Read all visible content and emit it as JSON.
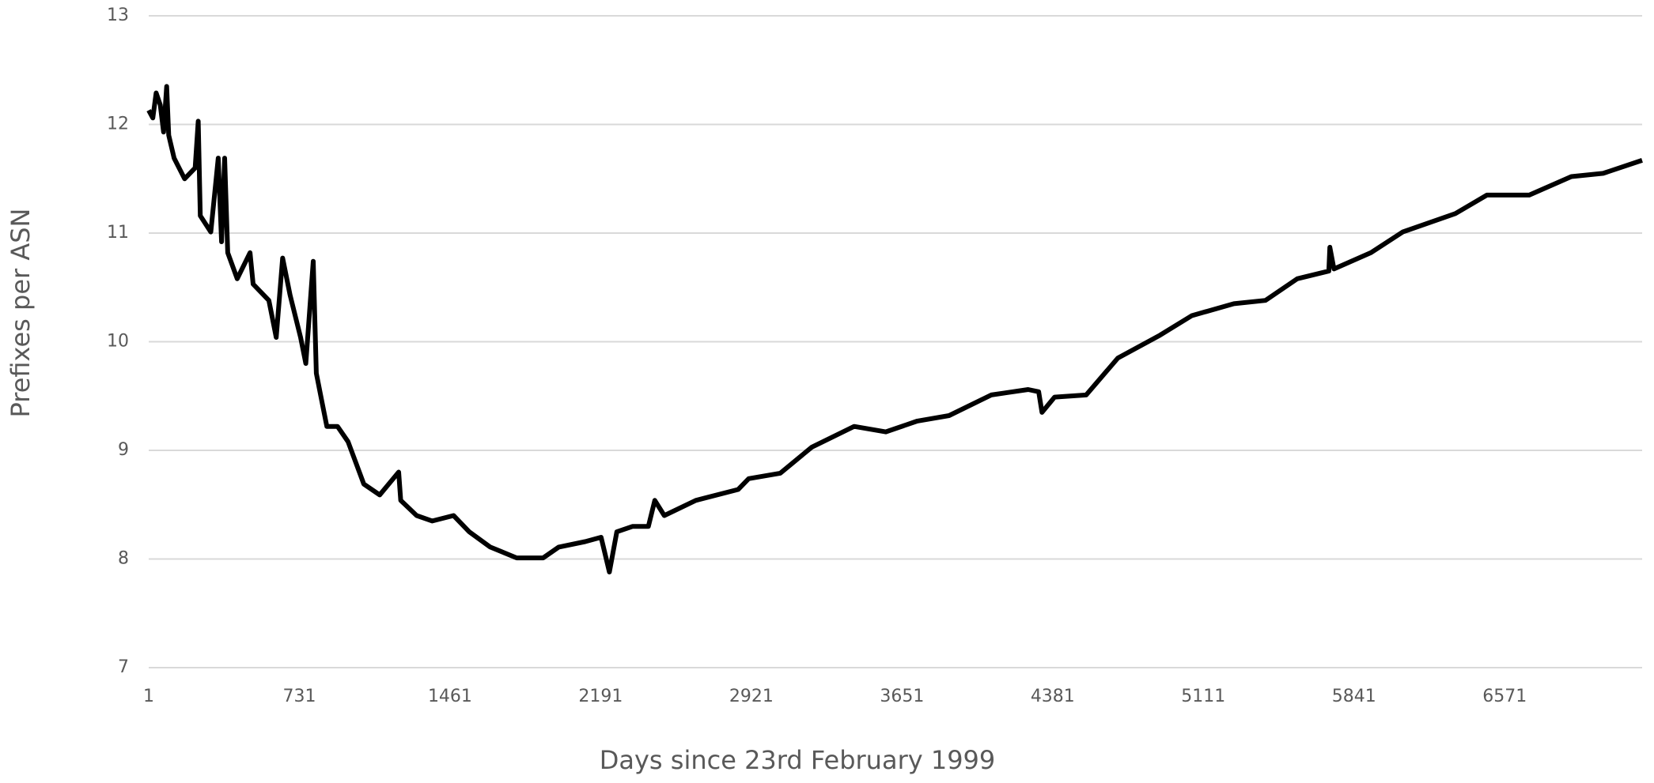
{
  "chart_data": {
    "type": "line",
    "x_label": "Days since 23rd February 1999",
    "y_label": "Prefixes per ASN",
    "xlim": [
      1,
      7237
    ],
    "xticks": [
      1,
      731,
      1461,
      2191,
      2921,
      3651,
      4381,
      5111,
      5841,
      6571
    ],
    "ylim": [
      7,
      13
    ],
    "yticks": [
      7,
      8,
      9,
      10,
      11,
      12,
      13
    ],
    "grid": true,
    "x": [
      1,
      21,
      37,
      57,
      73,
      88,
      98,
      124,
      175,
      226,
      241,
      251,
      302,
      338,
      354,
      369,
      384,
      430,
      492,
      507,
      583,
      619,
      650,
      686,
      737,
      762,
      798,
      813,
      844,
      864,
      916,
      967,
      1043,
      1120,
      1212,
      1222,
      1299,
      1375,
      1478,
      1554,
      1656,
      1784,
      1912,
      1988,
      2116,
      2193,
      2233,
      2269,
      2346,
      2422,
      2453,
      2499,
      2652,
      2857,
      2908,
      3061,
      3214,
      3419,
      3572,
      3725,
      3879,
      4083,
      4262,
      4313,
      4329,
      4390,
      4543,
      4697,
      4901,
      5055,
      5259,
      5412,
      5566,
      5719,
      5724,
      5744,
      5923,
      6077,
      6332,
      6485,
      6690,
      6894,
      7048,
      7237
    ],
    "series": [
      {
        "color": "#000000",
        "values": [
          12.13,
          12.06,
          12.29,
          12.18,
          11.93,
          12.35,
          11.9,
          11.69,
          11.5,
          11.6,
          12.03,
          11.16,
          11.01,
          11.69,
          10.92,
          11.69,
          10.82,
          10.58,
          10.82,
          10.53,
          10.38,
          10.04,
          10.77,
          10.43,
          10.04,
          9.8,
          10.74,
          9.71,
          9.41,
          9.22,
          9.22,
          9.08,
          8.69,
          8.59,
          8.8,
          8.54,
          8.4,
          8.35,
          8.4,
          8.25,
          8.11,
          8.01,
          8.01,
          8.11,
          8.16,
          8.2,
          7.88,
          8.25,
          8.3,
          8.3,
          8.54,
          8.4,
          8.54,
          8.64,
          8.74,
          8.79,
          9.03,
          9.22,
          9.17,
          9.27,
          9.32,
          9.51,
          9.56,
          9.54,
          9.35,
          9.49,
          9.51,
          9.85,
          10.06,
          10.24,
          10.35,
          10.38,
          10.58,
          10.65,
          10.87,
          10.67,
          10.82,
          11.01,
          11.18,
          11.35,
          11.35,
          11.52,
          11.55,
          11.67
        ]
      }
    ]
  }
}
